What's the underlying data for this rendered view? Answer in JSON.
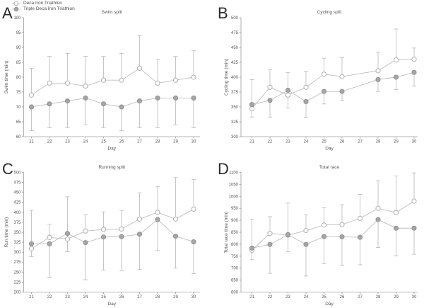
{
  "legend": {
    "items": [
      {
        "label": "Deca Iron Triathlon",
        "marker": "open"
      },
      {
        "label": "Triple Deca Iron Triathlon",
        "marker": "filled"
      }
    ]
  },
  "colors": {
    "series_line": "#bdbdbd",
    "error_bar": "#b8b8b8",
    "open_marker_fill": "#ffffff",
    "open_marker_stroke": "#a8a8a8",
    "filled_marker_fill": "#a6a6a6",
    "filled_marker_stroke": "#8e8e8e",
    "axis": "#9c9c9c",
    "text": "#545454",
    "letter": "#2b2b2b"
  },
  "chart_data": [
    {
      "type": "line",
      "letter": "A",
      "title": "Swim split",
      "xlabel": "Day",
      "ylabel": "Swim time (min)",
      "ylim": [
        60,
        100
      ],
      "yticks": [
        60,
        65,
        70,
        75,
        80,
        85,
        90,
        95,
        100
      ],
      "x": [
        21,
        22,
        23,
        24,
        25,
        26,
        27,
        28,
        29,
        30
      ],
      "grid": false,
      "legend_position": "top-left-figure",
      "series": [
        {
          "name": "Deca Iron Triathlon",
          "marker": "open",
          "values": [
            74,
            78,
            78,
            77,
            79,
            79,
            83,
            78,
            79,
            80
          ],
          "err_upper": [
            83,
            87,
            88,
            87,
            87,
            88,
            94,
            86,
            87,
            89
          ]
        },
        {
          "name": "Triple Deca Iron Triathlon",
          "marker": "filled",
          "values": [
            70,
            71,
            72,
            73,
            71,
            70,
            72,
            73,
            73,
            73
          ],
          "err_lower": [
            62,
            63,
            63,
            64,
            63,
            62,
            63,
            63,
            64,
            63
          ]
        }
      ]
    },
    {
      "type": "line",
      "letter": "B",
      "title": "Cycling split",
      "xlabel": "Day",
      "ylabel": "Cycling time (min)",
      "ylim": [
        300,
        500
      ],
      "yticks": [
        300,
        325,
        350,
        375,
        400,
        425,
        450,
        475,
        500
      ],
      "x": [
        21,
        22,
        23,
        24,
        25,
        26,
        27,
        28,
        29,
        30
      ],
      "grid": false,
      "series": [
        {
          "name": "Deca Iron Triathlon",
          "marker": "open",
          "values": [
            347,
            383,
            370,
            383,
            405,
            401,
            null,
            411,
            429,
            430
          ],
          "err_upper": [
            396,
            413,
            408,
            410,
            432,
            433,
            null,
            442,
            481,
            449
          ]
        },
        {
          "name": "Triple Deca Iron Triathlon",
          "marker": "filled",
          "values": [
            354,
            361,
            378,
            359,
            376,
            376,
            null,
            396,
            400,
            408
          ],
          "err_lower": [
            333,
            333,
            348,
            332,
            355,
            361,
            null,
            376,
            379,
            385
          ]
        }
      ]
    },
    {
      "type": "line",
      "letter": "C",
      "title": "Running split",
      "xlabel": "Day",
      "ylabel": "Run time (min)",
      "ylim": [
        200,
        500
      ],
      "yticks": [
        200,
        225,
        250,
        275,
        300,
        325,
        350,
        375,
        400,
        425,
        450,
        475,
        500
      ],
      "x": [
        21,
        22,
        23,
        24,
        25,
        26,
        27,
        28,
        29,
        30
      ],
      "grid": false,
      "series": [
        {
          "name": "Deca Iron Triathlon",
          "marker": "open",
          "values": [
            309,
            337,
            333,
            353,
            357,
            358,
            383,
            400,
            383,
            408
          ],
          "err_upper": [
            405,
            370,
            439,
            394,
            401,
            405,
            449,
            465,
            487,
            482
          ]
        },
        {
          "name": "Triple Deca Iron Triathlon",
          "marker": "filled",
          "values": [
            321,
            321,
            347,
            324,
            338,
            339,
            345,
            382,
            340,
            326
          ],
          "err_lower": [
            289,
            237,
            301,
            231,
            255,
            253,
            257,
            304,
            260,
            246
          ]
        }
      ]
    },
    {
      "type": "line",
      "letter": "D",
      "title": "Total race",
      "xlabel": "Day",
      "ylabel": "Total race time (min)",
      "ylim": [
        600,
        1100
      ],
      "yticks": [
        600,
        650,
        700,
        750,
        800,
        850,
        900,
        950,
        1000,
        1050,
        1100
      ],
      "x": [
        21,
        22,
        23,
        24,
        25,
        26,
        27,
        28,
        29,
        30
      ],
      "grid": false,
      "series": [
        {
          "name": "Deca Iron Triathlon",
          "marker": "open",
          "values": [
            775,
            845,
            838,
            857,
            880,
            882,
            908,
            950,
            932,
            980
          ],
          "err_upper": [
            905,
            915,
            972,
            923,
            952,
            965,
            1008,
            1065,
            1085,
            1098
          ]
        },
        {
          "name": "Triple Deca Iron Triathlon",
          "marker": "filled",
          "values": [
            784,
            799,
            840,
            799,
            832,
            831,
            829,
            903,
            867,
            867
          ],
          "err_lower": [
            735,
            678,
            768,
            667,
            719,
            712,
            714,
            786,
            752,
            758
          ]
        }
      ]
    }
  ]
}
